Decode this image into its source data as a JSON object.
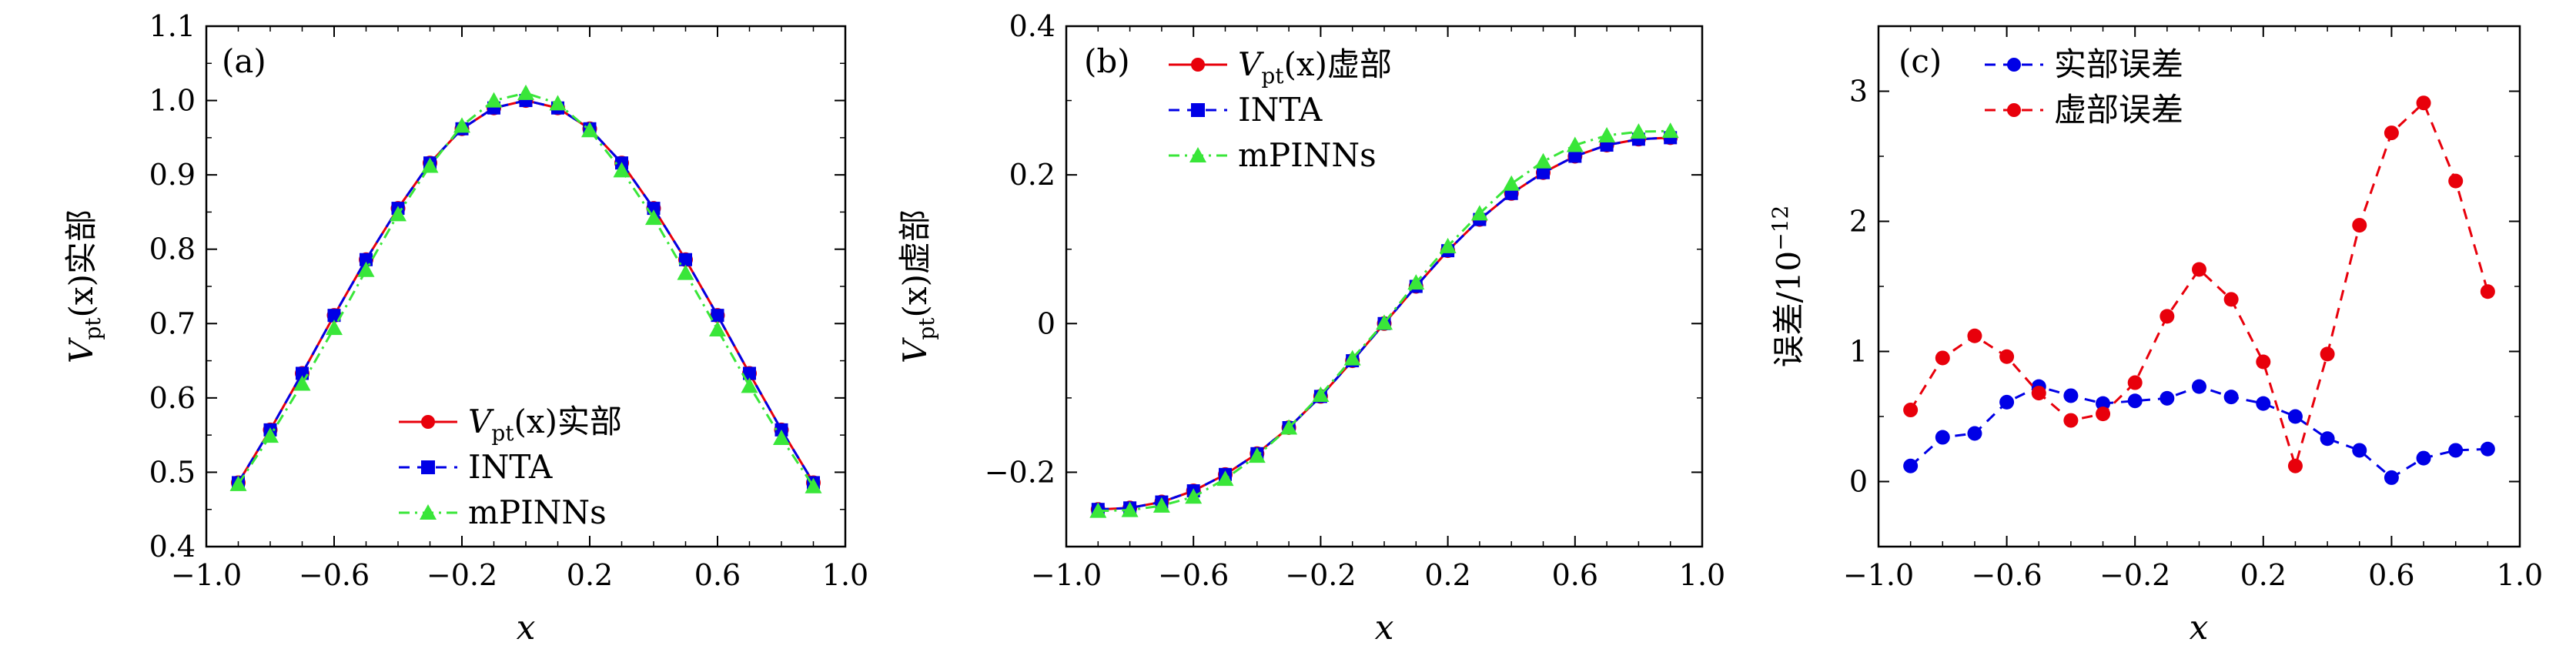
{
  "colors": {
    "red": "#e8000b",
    "blue": "#0000e6",
    "green": "#39e639",
    "red_dash": "#e8000b",
    "blue_dash": "#0000e6"
  },
  "chart_data": [
    {
      "panel": "(a)",
      "type": "line",
      "xlabel": "x",
      "ylabel": "V_pt(x)实部",
      "xlim": [
        -1.0,
        1.0
      ],
      "ylim": [
        0.4,
        1.1
      ],
      "xticks": [
        "−1.0",
        "−0.6",
        "−0.2",
        "0.2",
        "0.6",
        "1.0"
      ],
      "yticks": [
        "0.4",
        "0.5",
        "0.6",
        "0.7",
        "0.8",
        "0.9",
        "1.0",
        "1.1"
      ],
      "legend_position": "lower-center",
      "x": [
        -0.9,
        -0.8,
        -0.7,
        -0.6,
        -0.5,
        -0.4,
        -0.3,
        -0.2,
        -0.1,
        0.0,
        0.1,
        0.2,
        0.3,
        0.4,
        0.5,
        0.6,
        0.7,
        0.8,
        0.9
      ],
      "series": [
        {
          "name": "V_pt(x)实部",
          "marker": "circle",
          "line": "solid",
          "color": "#e8000b",
          "values": [
            0.486,
            0.557,
            0.633,
            0.711,
            0.786,
            0.855,
            0.916,
            0.962,
            0.99,
            1.0,
            0.99,
            0.962,
            0.916,
            0.855,
            0.786,
            0.711,
            0.633,
            0.557,
            0.486
          ]
        },
        {
          "name": "INTA",
          "marker": "square",
          "line": "dashed",
          "color": "#0000e6",
          "values": [
            0.486,
            0.557,
            0.633,
            0.711,
            0.786,
            0.855,
            0.916,
            0.962,
            0.99,
            1.0,
            0.99,
            0.962,
            0.916,
            0.855,
            0.786,
            0.711,
            0.633,
            0.557,
            0.486
          ]
        },
        {
          "name": "mPINNs",
          "marker": "triangle",
          "line": "dashdot",
          "color": "#39e639",
          "values": [
            0.484,
            0.549,
            0.619,
            0.694,
            0.772,
            0.847,
            0.912,
            0.966,
            1.0,
            1.01,
            0.996,
            0.96,
            0.906,
            0.842,
            0.768,
            0.692,
            0.616,
            0.546,
            0.481
          ]
        }
      ]
    },
    {
      "panel": "(b)",
      "type": "line",
      "xlabel": "x",
      "ylabel": "V_pt(x)虚部",
      "xlim": [
        -1.0,
        1.0
      ],
      "ylim": [
        -0.3,
        0.4
      ],
      "xticks": [
        "−1.0",
        "−0.6",
        "−0.2",
        "0.2",
        "0.6",
        "1.0"
      ],
      "yticks": [
        "−0.2",
        "0",
        "0.2",
        "0.4"
      ],
      "legend_position": "top-left",
      "x": [
        -0.9,
        -0.8,
        -0.7,
        -0.6,
        -0.5,
        -0.4,
        -0.3,
        -0.2,
        -0.1,
        0.0,
        0.1,
        0.2,
        0.3,
        0.4,
        0.5,
        0.6,
        0.7,
        0.8,
        0.9
      ],
      "series": [
        {
          "name": "V_pt(x)虚部",
          "marker": "circle",
          "line": "solid",
          "color": "#e8000b",
          "values": [
            -0.25,
            -0.248,
            -0.24,
            -0.225,
            -0.203,
            -0.175,
            -0.14,
            -0.098,
            -0.05,
            0.0,
            0.05,
            0.098,
            0.14,
            0.175,
            0.203,
            0.225,
            0.24,
            0.248,
            0.25
          ]
        },
        {
          "name": "INTA",
          "marker": "square",
          "line": "dashed",
          "color": "#0000e6",
          "values": [
            -0.25,
            -0.248,
            -0.24,
            -0.225,
            -0.203,
            -0.175,
            -0.14,
            -0.098,
            -0.05,
            0.0,
            0.05,
            0.098,
            0.14,
            0.175,
            0.203,
            0.225,
            0.24,
            0.248,
            0.25
          ]
        },
        {
          "name": "mPINNs",
          "marker": "triangle",
          "line": "dashdot",
          "color": "#39e639",
          "values": [
            -0.252,
            -0.251,
            -0.245,
            -0.233,
            -0.209,
            -0.178,
            -0.14,
            -0.096,
            -0.047,
            0.001,
            0.055,
            0.104,
            0.148,
            0.188,
            0.218,
            0.24,
            0.253,
            0.258,
            0.259
          ]
        }
      ]
    },
    {
      "panel": "(c)",
      "type": "line",
      "xlabel": "x",
      "ylabel": "误差/10^−12",
      "xlim": [
        -1.0,
        1.0
      ],
      "ylim": [
        -0.5,
        3.5
      ],
      "xticks": [
        "−1.0",
        "−0.6",
        "−0.2",
        "0.2",
        "0.6",
        "1.0"
      ],
      "yticks": [
        "0",
        "1",
        "2",
        "3"
      ],
      "legend_position": "top-left",
      "x": [
        -0.9,
        -0.8,
        -0.7,
        -0.6,
        -0.5,
        -0.4,
        -0.3,
        -0.2,
        -0.1,
        0.0,
        0.1,
        0.2,
        0.3,
        0.4,
        0.5,
        0.6,
        0.7,
        0.8,
        0.9
      ],
      "series": [
        {
          "name": "实部误差",
          "marker": "circle",
          "line": "dashed",
          "color": "#0000e6",
          "values": [
            0.12,
            0.34,
            0.37,
            0.61,
            0.73,
            0.66,
            0.6,
            0.62,
            0.64,
            0.73,
            0.65,
            0.6,
            0.5,
            0.33,
            0.24,
            0.03,
            0.18,
            0.24,
            0.25
          ]
        },
        {
          "name": "虚部误差",
          "marker": "circle",
          "line": "dashed",
          "color": "#e8000b",
          "values": [
            0.55,
            0.95,
            1.12,
            0.96,
            0.68,
            0.47,
            0.52,
            0.76,
            1.27,
            1.63,
            1.4,
            0.92,
            0.12,
            0.98,
            1.97,
            2.68,
            2.91,
            2.31,
            1.46
          ]
        }
      ]
    }
  ],
  "labels": {
    "a_tag": "(a)",
    "b_tag": "(b)",
    "c_tag": "(c)",
    "x_label": "x",
    "a_ylabel_main": "V",
    "a_ylabel_sub": "pt",
    "a_ylabel_rest": "(x)实部",
    "b_ylabel_main": "V",
    "b_ylabel_sub": "pt",
    "b_ylabel_rest": "(x)虚部",
    "c_ylabel_main": "误差/10",
    "c_ylabel_sup": "−12",
    "leg_a1_main": "V",
    "leg_a1_sub": "pt",
    "leg_a1_rest": "(x)实部",
    "leg_b1_main": "V",
    "leg_b1_sub": "pt",
    "leg_b1_rest": "(x)虚部",
    "leg_inta": "INTA",
    "leg_mpinns": "mPINNs",
    "leg_c1": "实部误差",
    "leg_c2": "虚部误差"
  }
}
